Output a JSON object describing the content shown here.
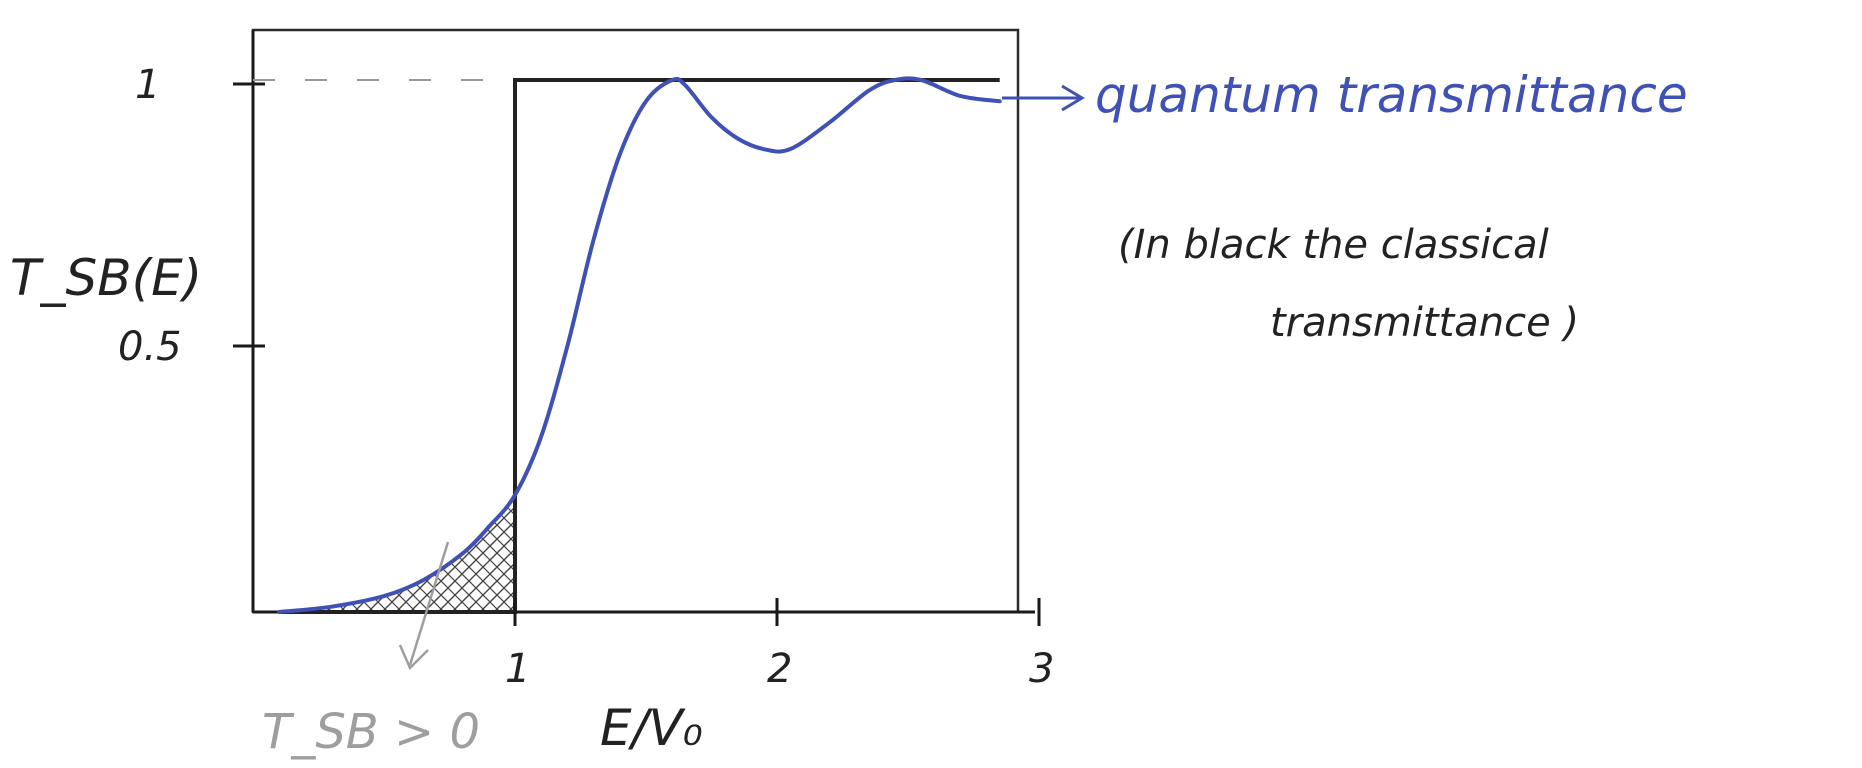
{
  "chart_data": {
    "type": "line",
    "xlabel": "E/V₀",
    "ylabel": "T_SB(E)",
    "xlim": [
      0,
      3
    ],
    "ylim": [
      0,
      1.05
    ],
    "x_ticks": [
      {
        "value": 1,
        "label": "1"
      },
      {
        "value": 2,
        "label": "2"
      },
      {
        "value": 3,
        "label": "3"
      }
    ],
    "y_ticks": [
      {
        "value": 0.5,
        "label": "0.5"
      },
      {
        "value": 1,
        "label": "1"
      }
    ],
    "grid": false,
    "series": [
      {
        "name": "quantum transmittance",
        "color": "#3f51b5",
        "x": [
          0.1,
          0.3,
          0.5,
          0.65,
          0.8,
          0.9,
          1.0,
          1.1,
          1.2,
          1.3,
          1.4,
          1.5,
          1.6,
          1.65,
          1.75,
          1.85,
          1.95,
          2.05,
          2.2,
          2.35,
          2.45,
          2.55,
          2.7,
          2.85
        ],
        "y": [
          0.0,
          0.01,
          0.03,
          0.06,
          0.11,
          0.16,
          0.22,
          0.33,
          0.5,
          0.7,
          0.86,
          0.96,
          1.0,
          0.99,
          0.93,
          0.89,
          0.87,
          0.87,
          0.92,
          0.98,
          1.0,
          1.0,
          0.97,
          0.96
        ]
      },
      {
        "name": "classical transmittance",
        "color": "#222222",
        "x": [
          0.1,
          1.0,
          1.0,
          2.85
        ],
        "y": [
          0.0,
          0.0,
          1.0,
          1.0
        ]
      }
    ],
    "annotations": [
      {
        "text": "quantum transmittance",
        "color": "#3f51b5"
      },
      {
        "text": "(In black the classical",
        "color": "#222222"
      },
      {
        "text": "transmittance    )",
        "color": "#222222"
      },
      {
        "text": "T_SB > 0",
        "color": "#9e9e9e"
      }
    ]
  }
}
